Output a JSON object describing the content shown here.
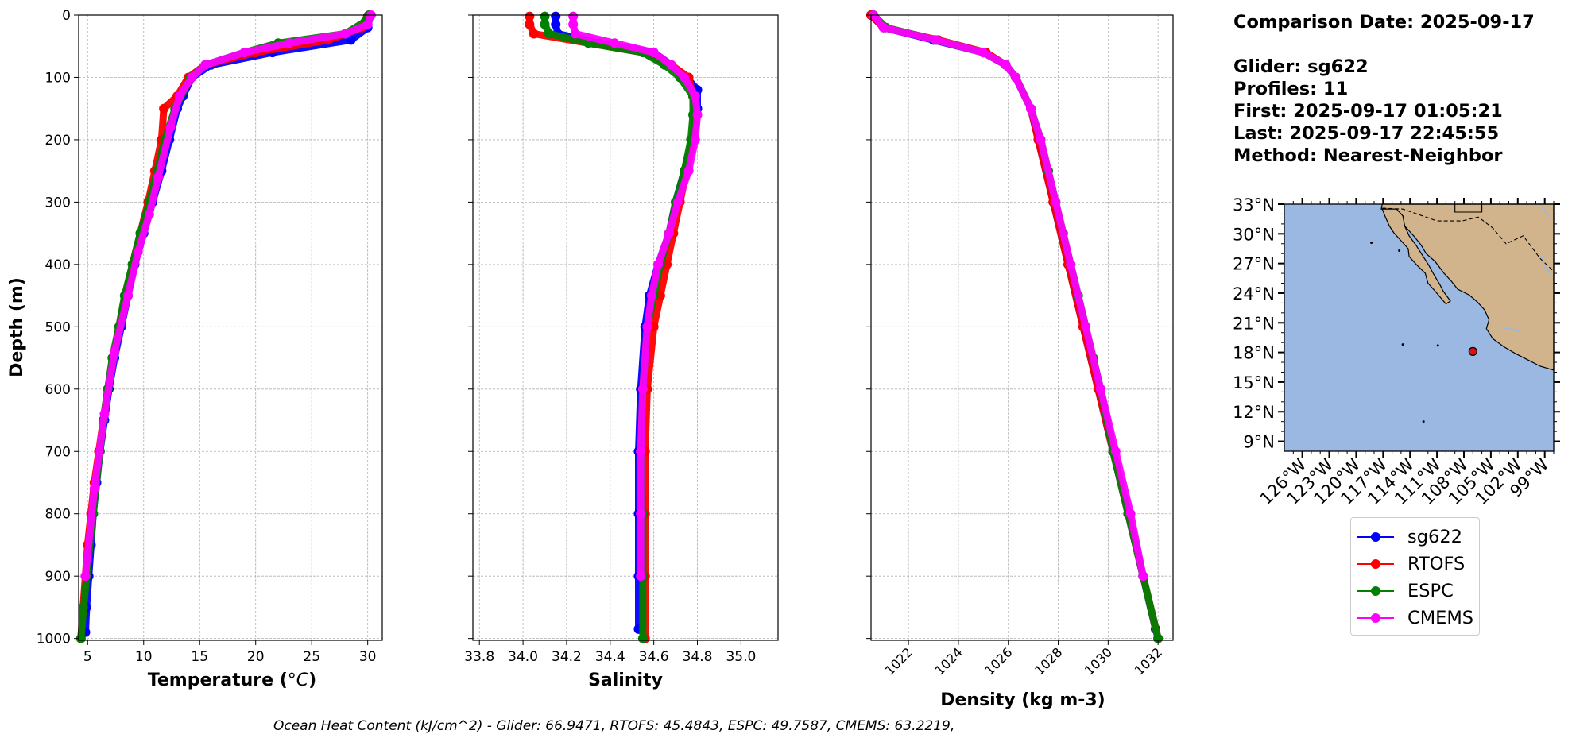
{
  "chart_data": [
    {
      "type": "line",
      "panel": "temperature",
      "xlabel": "Temperature ($^oC$)",
      "xlabel_text": "Temperature (",
      "xlabel_unit": "°C",
      "xlabel_close": ")",
      "ylabel": "Depth (m)",
      "xlim": [
        4.2,
        31.3
      ],
      "ylim": [
        1003,
        0
      ],
      "xticks": [
        5,
        10,
        15,
        20,
        25,
        30
      ],
      "yticks": [
        0,
        100,
        200,
        300,
        400,
        500,
        600,
        700,
        800,
        900,
        1000
      ],
      "grid": true,
      "series": [
        {
          "name": "sg622",
          "color": "#0000ff",
          "depth": [
            2,
            20,
            40,
            60,
            80,
            100,
            130,
            150,
            200,
            250,
            300,
            350,
            400,
            450,
            500,
            550,
            600,
            650,
            700,
            750,
            800,
            850,
            900,
            950,
            990
          ],
          "values": [
            30.2,
            30.0,
            28.5,
            21.5,
            16.0,
            14.3,
            13.5,
            13.0,
            12.3,
            11.6,
            10.8,
            10.0,
            9.2,
            8.6,
            8.0,
            7.4,
            6.9,
            6.5,
            6.1,
            5.8,
            5.5,
            5.3,
            5.1,
            4.9,
            4.8
          ]
        },
        {
          "name": "RTOFS",
          "color": "#ff0000",
          "depth": [
            2,
            20,
            40,
            60,
            80,
            100,
            130,
            150,
            200,
            250,
            300,
            350,
            400,
            450,
            500,
            550,
            600,
            650,
            700,
            750,
            800,
            850,
            900,
            950,
            1000
          ],
          "values": [
            30.0,
            29.5,
            26.5,
            20.0,
            15.5,
            14.0,
            13.0,
            11.8,
            11.6,
            11.0,
            10.4,
            9.7,
            9.0,
            8.4,
            7.8,
            7.3,
            6.8,
            6.4,
            6.0,
            5.6,
            5.3,
            5.0,
            4.8,
            4.6,
            4.4
          ]
        },
        {
          "name": "ESPC",
          "color": "#008000",
          "depth": [
            0,
            10,
            30,
            45,
            60,
            80,
            100,
            150,
            200,
            250,
            300,
            350,
            400,
            450,
            500,
            550,
            600,
            650,
            700,
            800,
            900,
            1000
          ],
          "values": [
            30.1,
            29.8,
            28.0,
            22.0,
            19.0,
            15.5,
            14.2,
            12.8,
            11.9,
            11.2,
            10.5,
            9.7,
            9.0,
            8.3,
            7.8,
            7.2,
            6.8,
            6.4,
            6.1,
            5.5,
            4.9,
            4.4
          ]
        },
        {
          "name": "CMEMS",
          "color": "#ff00ff",
          "depth": [
            0,
            15,
            30,
            45,
            60,
            80,
            100,
            130,
            180,
            260,
            320,
            380,
            450,
            540,
            640,
            760,
            900
          ],
          "values": [
            30.3,
            30.0,
            28.0,
            23.0,
            19.0,
            15.5,
            14.3,
            13.2,
            12.4,
            11.3,
            10.5,
            9.5,
            8.6,
            7.4,
            6.5,
            5.6,
            4.8
          ]
        }
      ]
    },
    {
      "type": "line",
      "panel": "salinity",
      "xlabel": "Salinity",
      "xlim": [
        33.77,
        35.17
      ],
      "ylim": [
        1003,
        0
      ],
      "xticks": [
        33.8,
        34.0,
        34.2,
        34.4,
        34.6,
        34.8,
        35.0
      ],
      "xticklabels": [
        "33.8",
        "34.0",
        "34.2",
        "34.4",
        "34.6",
        "34.8",
        "35.0"
      ],
      "grid": true,
      "series": [
        {
          "name": "sg622",
          "color": "#0000ff",
          "depth": [
            2,
            15,
            30,
            45,
            60,
            80,
            100,
            120,
            150,
            200,
            250,
            300,
            350,
            400,
            450,
            500,
            600,
            700,
            800,
            900,
            985
          ],
          "values": [
            34.15,
            34.15,
            34.16,
            34.35,
            34.6,
            34.68,
            34.75,
            34.8,
            34.8,
            34.78,
            34.74,
            34.7,
            34.67,
            34.62,
            34.58,
            34.56,
            34.54,
            34.53,
            34.53,
            34.53,
            34.53
          ]
        },
        {
          "name": "RTOFS",
          "color": "#ff0000",
          "depth": [
            2,
            15,
            30,
            45,
            60,
            80,
            100,
            130,
            160,
            200,
            250,
            300,
            350,
            400,
            450,
            500,
            600,
            700,
            800,
            900,
            1000
          ],
          "values": [
            34.03,
            34.03,
            34.05,
            34.3,
            34.55,
            34.68,
            34.76,
            34.78,
            34.79,
            34.78,
            34.75,
            34.72,
            34.69,
            34.66,
            34.63,
            34.6,
            34.57,
            34.56,
            34.56,
            34.56,
            34.56
          ]
        },
        {
          "name": "ESPC",
          "color": "#008000",
          "depth": [
            2,
            15,
            30,
            45,
            60,
            80,
            100,
            130,
            160,
            200,
            250,
            300,
            350,
            400,
            450,
            500,
            600,
            700,
            800,
            900,
            1000
          ],
          "values": [
            34.1,
            34.1,
            34.12,
            34.3,
            34.55,
            34.65,
            34.72,
            34.78,
            34.78,
            34.77,
            34.74,
            34.7,
            34.67,
            34.63,
            34.6,
            34.57,
            34.55,
            34.54,
            34.55,
            34.55,
            34.55
          ]
        },
        {
          "name": "CMEMS",
          "color": "#ff00ff",
          "depth": [
            2,
            15,
            30,
            45,
            60,
            80,
            100,
            130,
            160,
            200,
            250,
            300,
            350,
            400,
            450,
            500,
            600,
            700,
            800,
            900
          ],
          "values": [
            34.23,
            34.23,
            34.24,
            34.42,
            34.6,
            34.68,
            34.74,
            34.79,
            34.8,
            34.79,
            34.76,
            34.71,
            34.67,
            34.62,
            34.59,
            34.57,
            34.55,
            34.54,
            34.54,
            34.54
          ]
        }
      ]
    },
    {
      "type": "line",
      "panel": "density",
      "xlabel": "Density (kg m-3)",
      "xlim": [
        1020.5,
        1032.6
      ],
      "ylim": [
        1003,
        0
      ],
      "xticks": [
        1022,
        1024,
        1026,
        1028,
        1030,
        1032
      ],
      "xticklabels": [
        "1022",
        "1024",
        "1026",
        "1028",
        "1030",
        "1032"
      ],
      "grid": true,
      "series": [
        {
          "name": "sg622",
          "color": "#0000ff",
          "depth": [
            0,
            20,
            40,
            60,
            80,
            100,
            150,
            200,
            300,
            400,
            500,
            600,
            700,
            800,
            900,
            985
          ],
          "values": [
            1020.5,
            1021.0,
            1023.0,
            1025.0,
            1025.9,
            1026.3,
            1026.9,
            1027.2,
            1027.8,
            1028.4,
            1029.0,
            1029.6,
            1030.2,
            1030.8,
            1031.4,
            1031.9
          ]
        },
        {
          "name": "RTOFS",
          "color": "#ff0000",
          "depth": [
            0,
            20,
            40,
            60,
            80,
            100,
            150,
            200,
            300,
            400,
            500,
            600,
            700,
            800,
            900,
            1000
          ],
          "values": [
            1020.5,
            1021.0,
            1023.2,
            1025.1,
            1025.9,
            1026.3,
            1026.9,
            1027.2,
            1027.8,
            1028.4,
            1029.0,
            1029.6,
            1030.2,
            1030.8,
            1031.4,
            1032.0
          ]
        },
        {
          "name": "ESPC",
          "color": "#008000",
          "depth": [
            0,
            20,
            40,
            60,
            80,
            100,
            150,
            200,
            250,
            300,
            350,
            400,
            450,
            500,
            550,
            600,
            700,
            800,
            900,
            1000
          ],
          "values": [
            1020.6,
            1021.1,
            1023.1,
            1025.0,
            1025.9,
            1026.3,
            1026.9,
            1027.3,
            1027.6,
            1027.9,
            1028.2,
            1028.5,
            1028.8,
            1029.1,
            1029.4,
            1029.7,
            1030.2,
            1030.8,
            1031.4,
            1032.0
          ]
        },
        {
          "name": "CMEMS",
          "color": "#ff00ff",
          "depth": [
            0,
            20,
            40,
            60,
            80,
            100,
            150,
            200,
            300,
            400,
            500,
            600,
            700,
            800,
            900
          ],
          "values": [
            1020.6,
            1021.0,
            1023.1,
            1025.0,
            1025.9,
            1026.3,
            1026.9,
            1027.3,
            1027.9,
            1028.5,
            1029.1,
            1029.7,
            1030.3,
            1030.9,
            1031.4
          ]
        }
      ]
    },
    {
      "type": "map",
      "panel": "map",
      "lon_range": [
        -128,
        -98
      ],
      "lat_range": [
        8,
        33
      ],
      "yticklabels": [
        "33°N",
        "30°N",
        "27°N",
        "24°N",
        "21°N",
        "18°N",
        "15°N",
        "12°N",
        "9°N"
      ],
      "xticklabels": [
        "126°W",
        "123°W",
        "120°W",
        "117°W",
        "114°W",
        "111°W",
        "108°W",
        "105°W",
        "102°W",
        "99°W"
      ],
      "ocean_color": "#9ab8e2",
      "land_color": "#d2b48c",
      "glider_position": {
        "lon": -107,
        "lat": 18.1,
        "color": "#e01010"
      }
    }
  ],
  "info": {
    "comparison_date": "Comparison Date: 2025-09-17",
    "glider": "Glider: sg622",
    "profiles": "Profiles: 11",
    "first": "First: 2025-09-17 01:05:21",
    "last": "Last: 2025-09-17 22:45:55",
    "method": "Method: Nearest-Neighbor"
  },
  "legend": [
    {
      "label": "sg622",
      "color": "#0000ff"
    },
    {
      "label": "RTOFS",
      "color": "#ff0000"
    },
    {
      "label": "ESPC",
      "color": "#008000"
    },
    {
      "label": "CMEMS",
      "color": "#ff00ff"
    }
  ],
  "footer": "Ocean Heat Content (kJ/cm^2) - Glider: 66.9471,  RTOFS: 45.4843,  ESPC: 49.7587,  CMEMS: 63.2219,"
}
